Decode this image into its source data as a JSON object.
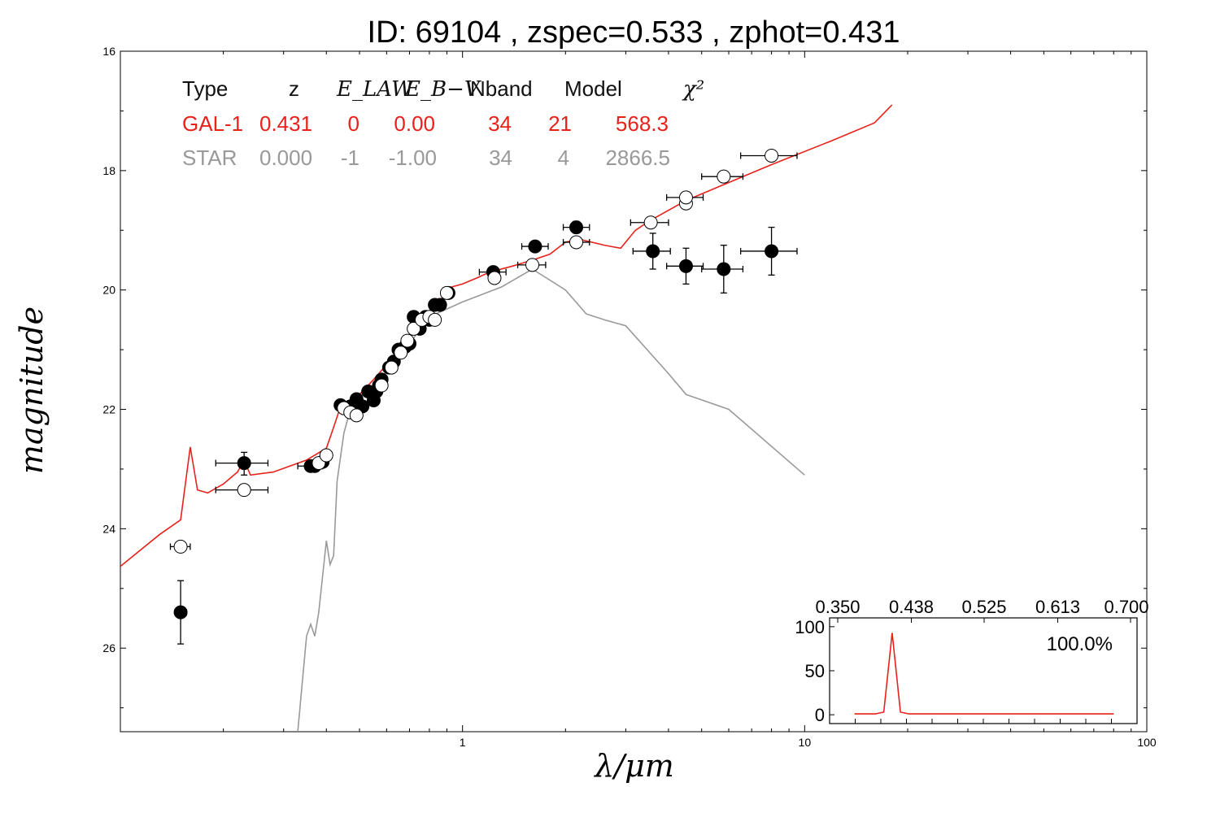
{
  "chart_data": {
    "type": "scatter",
    "title": "ID:  69104 , zspec=0.533 , zphot=0.431",
    "xlabel": "λ/μm",
    "ylabel": "magnitude",
    "x_scale": "log",
    "y_inverted": true,
    "xlim": [
      0.1,
      100
    ],
    "ylim": [
      27.4,
      16
    ],
    "x_ticks": [
      "1",
      "10",
      "100"
    ],
    "y_ticks": [
      "16",
      "18",
      "20",
      "22",
      "24",
      "26"
    ],
    "colors": {
      "gal": "#e8211b",
      "star": "#999999",
      "points": "#000000"
    },
    "fit_table": {
      "header": [
        "Type",
        "z",
        "E_LAW",
        "E_B−V",
        "Nband",
        "Model",
        "χ²"
      ],
      "rows": [
        {
          "name": "gal",
          "color": "#e8211b",
          "cells": [
            "GAL-1",
            "0.431",
            "0",
            "0.00",
            "34",
            "21",
            "568.3"
          ]
        },
        {
          "name": "star",
          "color": "#999999",
          "cells": [
            "STAR",
            "0.000",
            "-1",
            "-1.00",
            "34",
            "4",
            "2866.5"
          ]
        }
      ]
    },
    "series": [
      {
        "name": "GAL-1",
        "kind": "line",
        "points": [
          [
            0.1,
            24.63
          ],
          [
            0.13,
            24.1
          ],
          [
            0.15,
            23.85
          ],
          [
            0.16,
            22.63
          ],
          [
            0.168,
            23.35
          ],
          [
            0.18,
            23.4
          ],
          [
            0.2,
            23.25
          ],
          [
            0.22,
            23.05
          ],
          [
            0.23,
            22.85
          ],
          [
            0.24,
            23.1
          ],
          [
            0.28,
            23.05
          ],
          [
            0.35,
            22.85
          ],
          [
            0.4,
            22.65
          ],
          [
            0.42,
            22.3
          ],
          [
            0.44,
            21.95
          ],
          [
            0.5,
            21.75
          ],
          [
            0.55,
            21.5
          ],
          [
            0.6,
            21.25
          ],
          [
            0.65,
            21.0
          ],
          [
            0.7,
            20.8
          ],
          [
            0.75,
            20.55
          ],
          [
            0.8,
            20.35
          ],
          [
            0.85,
            20.22
          ],
          [
            0.88,
            20.1
          ],
          [
            0.9,
            20.05
          ],
          [
            0.93,
            19.95
          ],
          [
            1.0,
            19.9
          ],
          [
            1.1,
            19.8
          ],
          [
            1.2,
            19.7
          ],
          [
            1.4,
            19.6
          ],
          [
            1.6,
            19.5
          ],
          [
            1.8,
            19.4
          ],
          [
            2.0,
            19.2
          ],
          [
            2.2,
            19.15
          ],
          [
            2.6,
            19.25
          ],
          [
            2.9,
            19.3
          ],
          [
            3.2,
            19.0
          ],
          [
            3.5,
            18.85
          ],
          [
            4.5,
            18.5
          ],
          [
            6.0,
            18.2
          ],
          [
            8.0,
            17.9
          ],
          [
            12.0,
            17.5
          ],
          [
            16.0,
            17.2
          ],
          [
            18.0,
            16.9
          ]
        ]
      },
      {
        "name": "STAR",
        "kind": "line",
        "points": [
          [
            0.33,
            27.4
          ],
          [
            0.35,
            25.8
          ],
          [
            0.36,
            25.6
          ],
          [
            0.37,
            25.8
          ],
          [
            0.38,
            25.4
          ],
          [
            0.39,
            24.8
          ],
          [
            0.4,
            24.2
          ],
          [
            0.41,
            24.6
          ],
          [
            0.42,
            24.45
          ],
          [
            0.43,
            23.2
          ],
          [
            0.45,
            22.4
          ],
          [
            0.47,
            22.0
          ],
          [
            0.5,
            21.95
          ],
          [
            0.52,
            21.9
          ],
          [
            0.55,
            21.7
          ],
          [
            0.6,
            21.35
          ],
          [
            0.7,
            20.9
          ],
          [
            0.8,
            20.45
          ],
          [
            1.0,
            20.2
          ],
          [
            1.3,
            19.95
          ],
          [
            1.6,
            19.65
          ],
          [
            2.0,
            20.0
          ],
          [
            2.3,
            20.4
          ],
          [
            2.6,
            20.5
          ],
          [
            3.0,
            20.6
          ],
          [
            4.0,
            21.4
          ],
          [
            4.5,
            21.75
          ],
          [
            6.0,
            22.0
          ],
          [
            10.0,
            23.1
          ]
        ]
      },
      {
        "name": "observed",
        "kind": "points-filled",
        "points": [
          {
            "x": 0.15,
            "y": 25.4,
            "xerr": [
              0.145,
              0.156
            ],
            "yerr": [
              24.87,
              25.93
            ]
          },
          {
            "x": 0.23,
            "y": 22.9,
            "xerr": [
              0.19,
              0.27
            ],
            "yerr": [
              22.72,
              23.1
            ]
          },
          {
            "x": 0.36,
            "y": 22.95,
            "xerr": [
              0.33,
              0.39
            ]
          },
          {
            "x": 0.37,
            "y": 22.95
          },
          {
            "x": 0.39,
            "y": 22.88
          },
          {
            "x": 0.44,
            "y": 21.93
          },
          {
            "x": 0.47,
            "y": 21.95
          },
          {
            "x": 0.49,
            "y": 21.83
          },
          {
            "x": 0.51,
            "y": 21.95
          },
          {
            "x": 0.53,
            "y": 21.7
          },
          {
            "x": 0.55,
            "y": 21.85
          },
          {
            "x": 0.56,
            "y": 21.7
          },
          {
            "x": 0.57,
            "y": 21.6
          },
          {
            "x": 0.58,
            "y": 21.5
          },
          {
            "x": 0.61,
            "y": 21.3
          },
          {
            "x": 0.63,
            "y": 21.2
          },
          {
            "x": 0.65,
            "y": 21.0
          },
          {
            "x": 0.68,
            "y": 20.95
          },
          {
            "x": 0.7,
            "y": 20.9
          },
          {
            "x": 0.72,
            "y": 20.45
          },
          {
            "x": 0.75,
            "y": 20.65
          },
          {
            "x": 0.78,
            "y": 20.45
          },
          {
            "x": 0.8,
            "y": 20.5
          },
          {
            "x": 0.83,
            "y": 20.25
          },
          {
            "x": 0.86,
            "y": 20.25
          },
          {
            "x": 0.91,
            "y": 20.05
          },
          {
            "x": 1.23,
            "y": 19.7,
            "xerr": [
              1.12,
              1.34
            ]
          },
          {
            "x": 1.63,
            "y": 19.27,
            "xerr": [
              1.49,
              1.78
            ]
          },
          {
            "x": 2.15,
            "y": 18.95,
            "xerr": [
              1.97,
              2.35
            ],
            "yerr": [
              18.85,
              19.05
            ]
          },
          {
            "x": 3.6,
            "y": 19.35,
            "xerr": [
              3.15,
              4.05
            ],
            "yerr": [
              19.05,
              19.65
            ]
          },
          {
            "x": 4.5,
            "y": 19.6,
            "xerr": [
              3.95,
              5.05
            ],
            "yerr": [
              19.3,
              19.9
            ]
          },
          {
            "x": 5.8,
            "y": 19.65,
            "xerr": [
              5.0,
              6.6
            ],
            "yerr": [
              19.25,
              20.05
            ]
          },
          {
            "x": 8.0,
            "y": 19.35,
            "xerr": [
              6.5,
              9.5
            ],
            "yerr": [
              18.95,
              19.75
            ]
          }
        ]
      },
      {
        "name": "model",
        "kind": "points-open",
        "points": [
          {
            "x": 0.15,
            "y": 24.3,
            "xerr": [
              0.14,
              0.16
            ]
          },
          {
            "x": 0.23,
            "y": 23.35,
            "xerr": [
              0.19,
              0.27
            ]
          },
          {
            "x": 0.38,
            "y": 22.9
          },
          {
            "x": 0.4,
            "y": 22.77
          },
          {
            "x": 0.45,
            "y": 21.98
          },
          {
            "x": 0.47,
            "y": 22.05
          },
          {
            "x": 0.49,
            "y": 22.1
          },
          {
            "x": 0.58,
            "y": 21.6
          },
          {
            "x": 0.62,
            "y": 21.3
          },
          {
            "x": 0.66,
            "y": 21.05
          },
          {
            "x": 0.69,
            "y": 20.85
          },
          {
            "x": 0.72,
            "y": 20.65
          },
          {
            "x": 0.76,
            "y": 20.5
          },
          {
            "x": 0.8,
            "y": 20.45
          },
          {
            "x": 0.83,
            "y": 20.5
          },
          {
            "x": 0.9,
            "y": 20.05
          },
          {
            "x": 1.24,
            "y": 19.8
          },
          {
            "x": 1.6,
            "y": 19.58,
            "xerr": [
              1.45,
              1.75
            ]
          },
          {
            "x": 2.15,
            "y": 19.2,
            "xerr": [
              1.97,
              2.35
            ]
          },
          {
            "x": 3.55,
            "y": 18.87,
            "xerr": [
              3.1,
              4.0
            ]
          },
          {
            "x": 4.5,
            "y": 18.55
          },
          {
            "x": 4.5,
            "y": 18.45,
            "xerr": [
              3.95,
              5.05
            ]
          },
          {
            "x": 5.8,
            "y": 18.1,
            "xerr": [
              5.0,
              6.6
            ]
          },
          {
            "x": 8.0,
            "y": 17.75,
            "xerr": [
              6.5,
              9.5
            ]
          }
        ]
      }
    ],
    "inset": {
      "type": "line",
      "x_ticks": [
        "0.350",
        "0.438",
        "0.525",
        "0.613",
        "0.700"
      ],
      "y_ticks": [
        "100",
        "50",
        "0"
      ],
      "xlim": [
        0.35,
        0.7
      ],
      "ylim": [
        -10,
        110
      ],
      "annotation": "100.0%",
      "points": [
        [
          0.37,
          1
        ],
        [
          0.395,
          1
        ],
        [
          0.405,
          3
        ],
        [
          0.415,
          93
        ],
        [
          0.425,
          3
        ],
        [
          0.435,
          1
        ],
        [
          0.5,
          1
        ],
        [
          0.6,
          1
        ],
        [
          0.68,
          1
        ]
      ]
    }
  }
}
